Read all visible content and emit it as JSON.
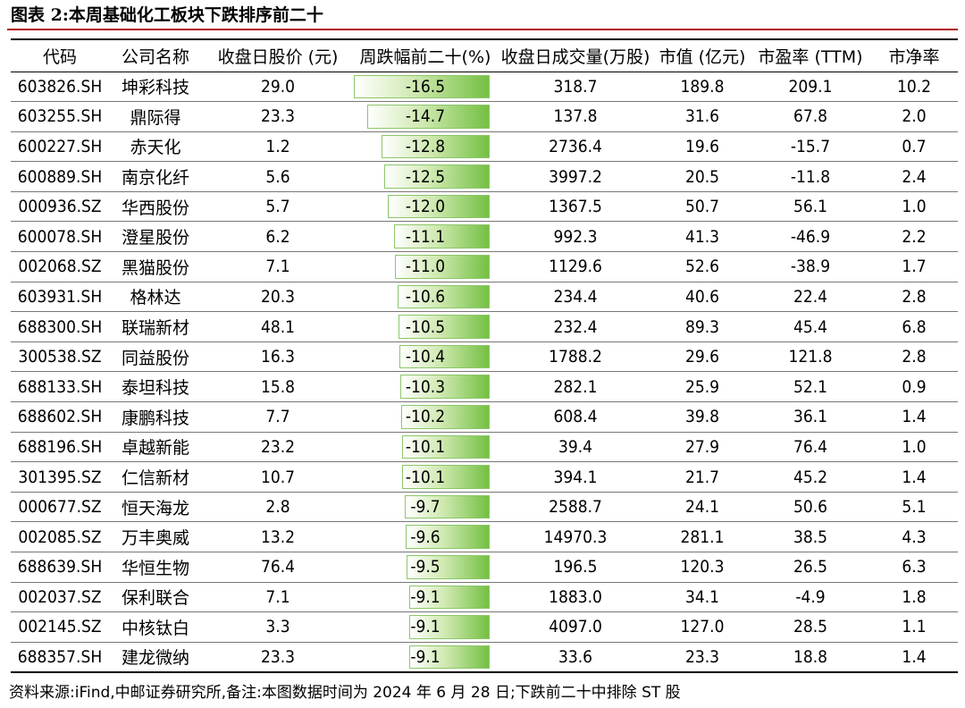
{
  "title": "图表 2:本周基础化工板块下跌排序前二十",
  "headers": [
    "代码",
    "公司名称",
    "收盘日股价 (元)",
    "周跌幅前二十(%)",
    "收盘日成交量(万股)",
    "市值 (亿元)",
    "市盈率 (TTM)",
    "市净率"
  ],
  "bar_color": "#74c043",
  "rows": [
    {
      "code": "603826.SH",
      "name": "坤彩科技",
      "price": "29.0",
      "change": "-16.5",
      "volume": "318.7",
      "mcap": "189.8",
      "pe": "209.1",
      "pb": "10.2"
    },
    {
      "code": "603255.SH",
      "name": "鼎际得",
      "price": "23.3",
      "change": "-14.7",
      "volume": "137.8",
      "mcap": "31.6",
      "pe": "67.8",
      "pb": "2.0"
    },
    {
      "code": "600227.SH",
      "name": "赤天化",
      "price": "1.2",
      "change": "-12.8",
      "volume": "2736.4",
      "mcap": "19.6",
      "pe": "-15.7",
      "pb": "0.7"
    },
    {
      "code": "600889.SH",
      "name": "南京化纤",
      "price": "5.6",
      "change": "-12.5",
      "volume": "3997.2",
      "mcap": "20.5",
      "pe": "-11.8",
      "pb": "2.4"
    },
    {
      "code": "000936.SZ",
      "name": "华西股份",
      "price": "5.7",
      "change": "-12.0",
      "volume": "1367.5",
      "mcap": "50.7",
      "pe": "56.1",
      "pb": "1.0"
    },
    {
      "code": "600078.SH",
      "name": "澄星股份",
      "price": "6.2",
      "change": "-11.1",
      "volume": "992.3",
      "mcap": "41.3",
      "pe": "-46.9",
      "pb": "2.2"
    },
    {
      "code": "002068.SZ",
      "name": "黑猫股份",
      "price": "7.1",
      "change": "-11.0",
      "volume": "1129.6",
      "mcap": "52.6",
      "pe": "-38.9",
      "pb": "1.7"
    },
    {
      "code": "603931.SH",
      "name": "格林达",
      "price": "20.3",
      "change": "-10.6",
      "volume": "234.4",
      "mcap": "40.6",
      "pe": "22.4",
      "pb": "2.8"
    },
    {
      "code": "688300.SH",
      "name": "联瑞新材",
      "price": "48.1",
      "change": "-10.5",
      "volume": "232.4",
      "mcap": "89.3",
      "pe": "45.4",
      "pb": "6.8"
    },
    {
      "code": "300538.SZ",
      "name": "同益股份",
      "price": "16.3",
      "change": "-10.4",
      "volume": "1788.2",
      "mcap": "29.6",
      "pe": "121.8",
      "pb": "2.8"
    },
    {
      "code": "688133.SH",
      "name": "泰坦科技",
      "price": "15.8",
      "change": "-10.3",
      "volume": "282.1",
      "mcap": "25.9",
      "pe": "52.1",
      "pb": "0.9"
    },
    {
      "code": "688602.SH",
      "name": "康鹏科技",
      "price": "7.7",
      "change": "-10.2",
      "volume": "608.4",
      "mcap": "39.8",
      "pe": "36.1",
      "pb": "1.4"
    },
    {
      "code": "688196.SH",
      "name": "卓越新能",
      "price": "23.2",
      "change": "-10.1",
      "volume": "39.4",
      "mcap": "27.9",
      "pe": "76.4",
      "pb": "1.0"
    },
    {
      "code": "301395.SZ",
      "name": "仁信新材",
      "price": "10.7",
      "change": "-10.1",
      "volume": "394.1",
      "mcap": "21.7",
      "pe": "45.2",
      "pb": "1.4"
    },
    {
      "code": "000677.SZ",
      "name": "恒天海龙",
      "price": "2.8",
      "change": "-9.7",
      "volume": "2588.7",
      "mcap": "24.1",
      "pe": "50.6",
      "pb": "5.1"
    },
    {
      "code": "002085.SZ",
      "name": "万丰奥威",
      "price": "13.2",
      "change": "-9.6",
      "volume": "14970.3",
      "mcap": "281.1",
      "pe": "38.5",
      "pb": "4.3"
    },
    {
      "code": "688639.SH",
      "name": "华恒生物",
      "price": "76.4",
      "change": "-9.5",
      "volume": "196.5",
      "mcap": "120.3",
      "pe": "26.5",
      "pb": "6.3"
    },
    {
      "code": "002037.SZ",
      "name": "保利联合",
      "price": "7.1",
      "change": "-9.1",
      "volume": "1883.0",
      "mcap": "34.1",
      "pe": "-4.9",
      "pb": "1.8"
    },
    {
      "code": "002145.SZ",
      "name": "中核钛白",
      "price": "3.3",
      "change": "-9.1",
      "volume": "4097.0",
      "mcap": "127.0",
      "pe": "28.5",
      "pb": "1.1"
    },
    {
      "code": "688357.SH",
      "name": "建龙微纳",
      "price": "23.3",
      "change": "-9.1",
      "volume": "33.6",
      "mcap": "23.3",
      "pe": "18.8",
      "pb": "1.4"
    }
  ],
  "footer": "资料来源:iFind,中邮证券研究所,备注:本图数据时间为 2024 年 6 月 28 日;下跌前二十中排除 ST 股"
}
